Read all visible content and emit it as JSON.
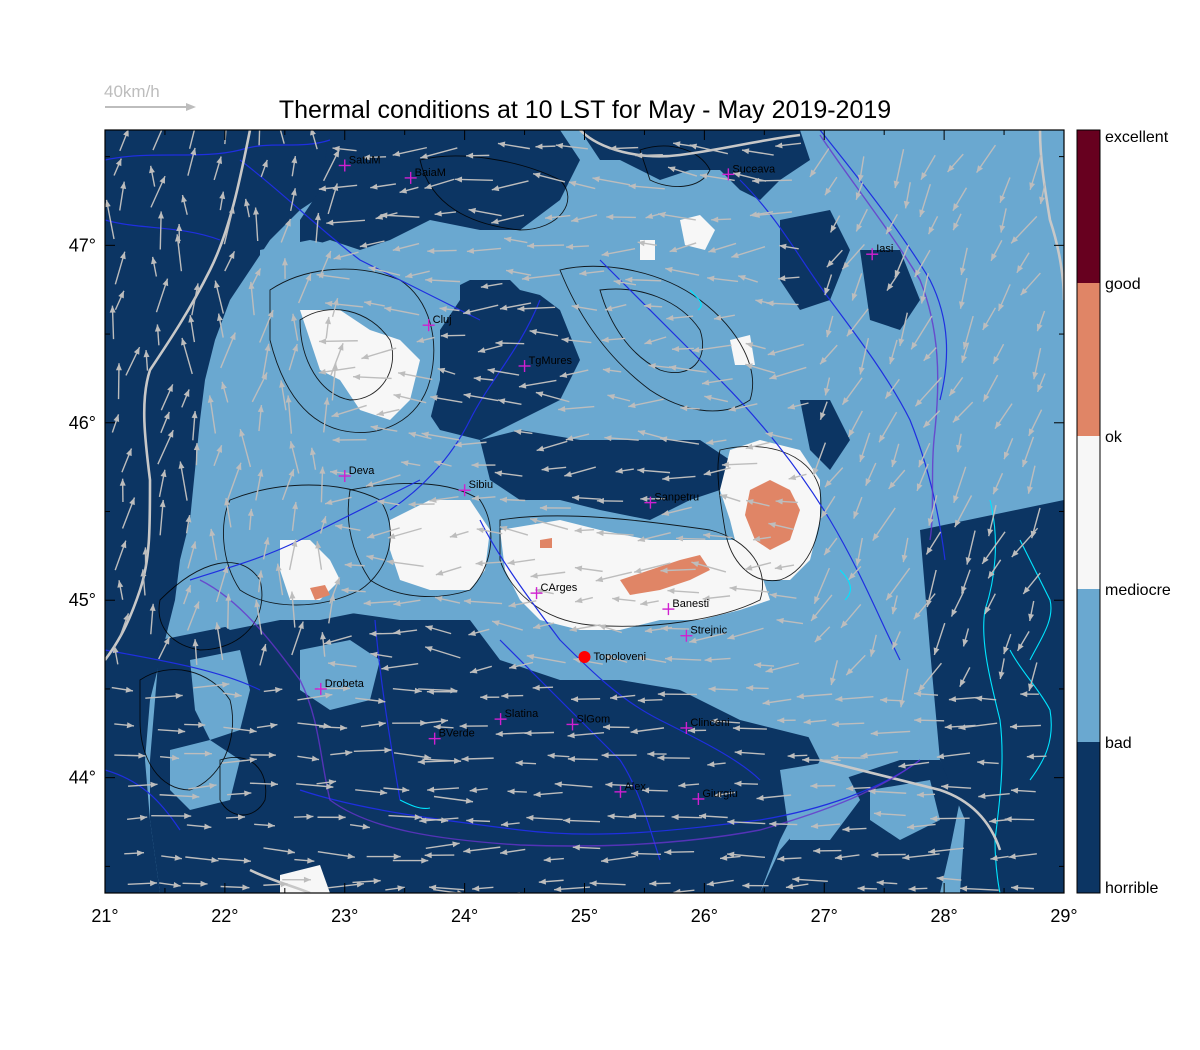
{
  "title": "Thermal conditions at 10 LST for May - May  2019-2019",
  "wind_scale": {
    "label": "40km/h"
  },
  "lon_ticks": [
    "21°",
    "22°",
    "23°",
    "24°",
    "25°",
    "26°",
    "27°",
    "28°",
    "29°"
  ],
  "lat_ticks": [
    "44°",
    "45°",
    "46°",
    "47°"
  ],
  "lon_values": [
    21,
    22,
    23,
    24,
    25,
    26,
    27,
    28,
    29
  ],
  "lat_values": [
    44,
    45,
    46,
    47
  ],
  "extent": {
    "lon": [
      21,
      29
    ],
    "lat": [
      43.35,
      47.65
    ]
  },
  "legend": {
    "labels": [
      "excellent",
      "good",
      "ok",
      "mediocre",
      "bad",
      "horrible"
    ],
    "colors": [
      "#67001f",
      "#e08566",
      "#f7f7f7",
      "#6aa8d0",
      "#0c3563"
    ]
  },
  "colors": {
    "horrible": "#0c3563",
    "bad": "#6aa8d0",
    "mediocre": "#f7f7f7",
    "ok": "#e08566",
    "good": "#67001f",
    "wind_arrow": "#bdbdbd",
    "river": "#1f2fe0",
    "border": "#c8c8c8",
    "city_marker": "#d020d0",
    "highlight": "#ff0000"
  },
  "cities": [
    {
      "name": "SatuM",
      "lon": 23.0,
      "lat": 47.45
    },
    {
      "name": "BaiaM",
      "lon": 23.55,
      "lat": 47.38
    },
    {
      "name": "Suceava",
      "lon": 26.2,
      "lat": 47.4
    },
    {
      "name": "Iasi",
      "lon": 27.4,
      "lat": 46.95
    },
    {
      "name": "Cluj",
      "lon": 23.7,
      "lat": 46.55
    },
    {
      "name": "TgMures",
      "lon": 24.5,
      "lat": 46.32
    },
    {
      "name": "Deva",
      "lon": 23.0,
      "lat": 45.7
    },
    {
      "name": "Sibiu",
      "lon": 24.0,
      "lat": 45.62
    },
    {
      "name": "Sanpetru",
      "lon": 25.55,
      "lat": 45.55
    },
    {
      "name": "CArges",
      "lon": 24.6,
      "lat": 45.04
    },
    {
      "name": "Banesti",
      "lon": 25.7,
      "lat": 44.95
    },
    {
      "name": "Strejnic",
      "lon": 25.85,
      "lat": 44.8
    },
    {
      "name": "Drobeta",
      "lon": 22.8,
      "lat": 44.5
    },
    {
      "name": "Slatina",
      "lon": 24.3,
      "lat": 44.33
    },
    {
      "name": "SlGom",
      "lon": 24.9,
      "lat": 44.3
    },
    {
      "name": "Clinceni",
      "lon": 25.85,
      "lat": 44.28
    },
    {
      "name": "BVerde",
      "lon": 23.75,
      "lat": 44.22
    },
    {
      "name": "Alex",
      "lon": 25.3,
      "lat": 43.92
    },
    {
      "name": "Giurgiu",
      "lon": 25.95,
      "lat": 43.88
    }
  ],
  "highlight": {
    "name": "Topoloveni",
    "lon": 25.0,
    "lat": 44.68
  }
}
